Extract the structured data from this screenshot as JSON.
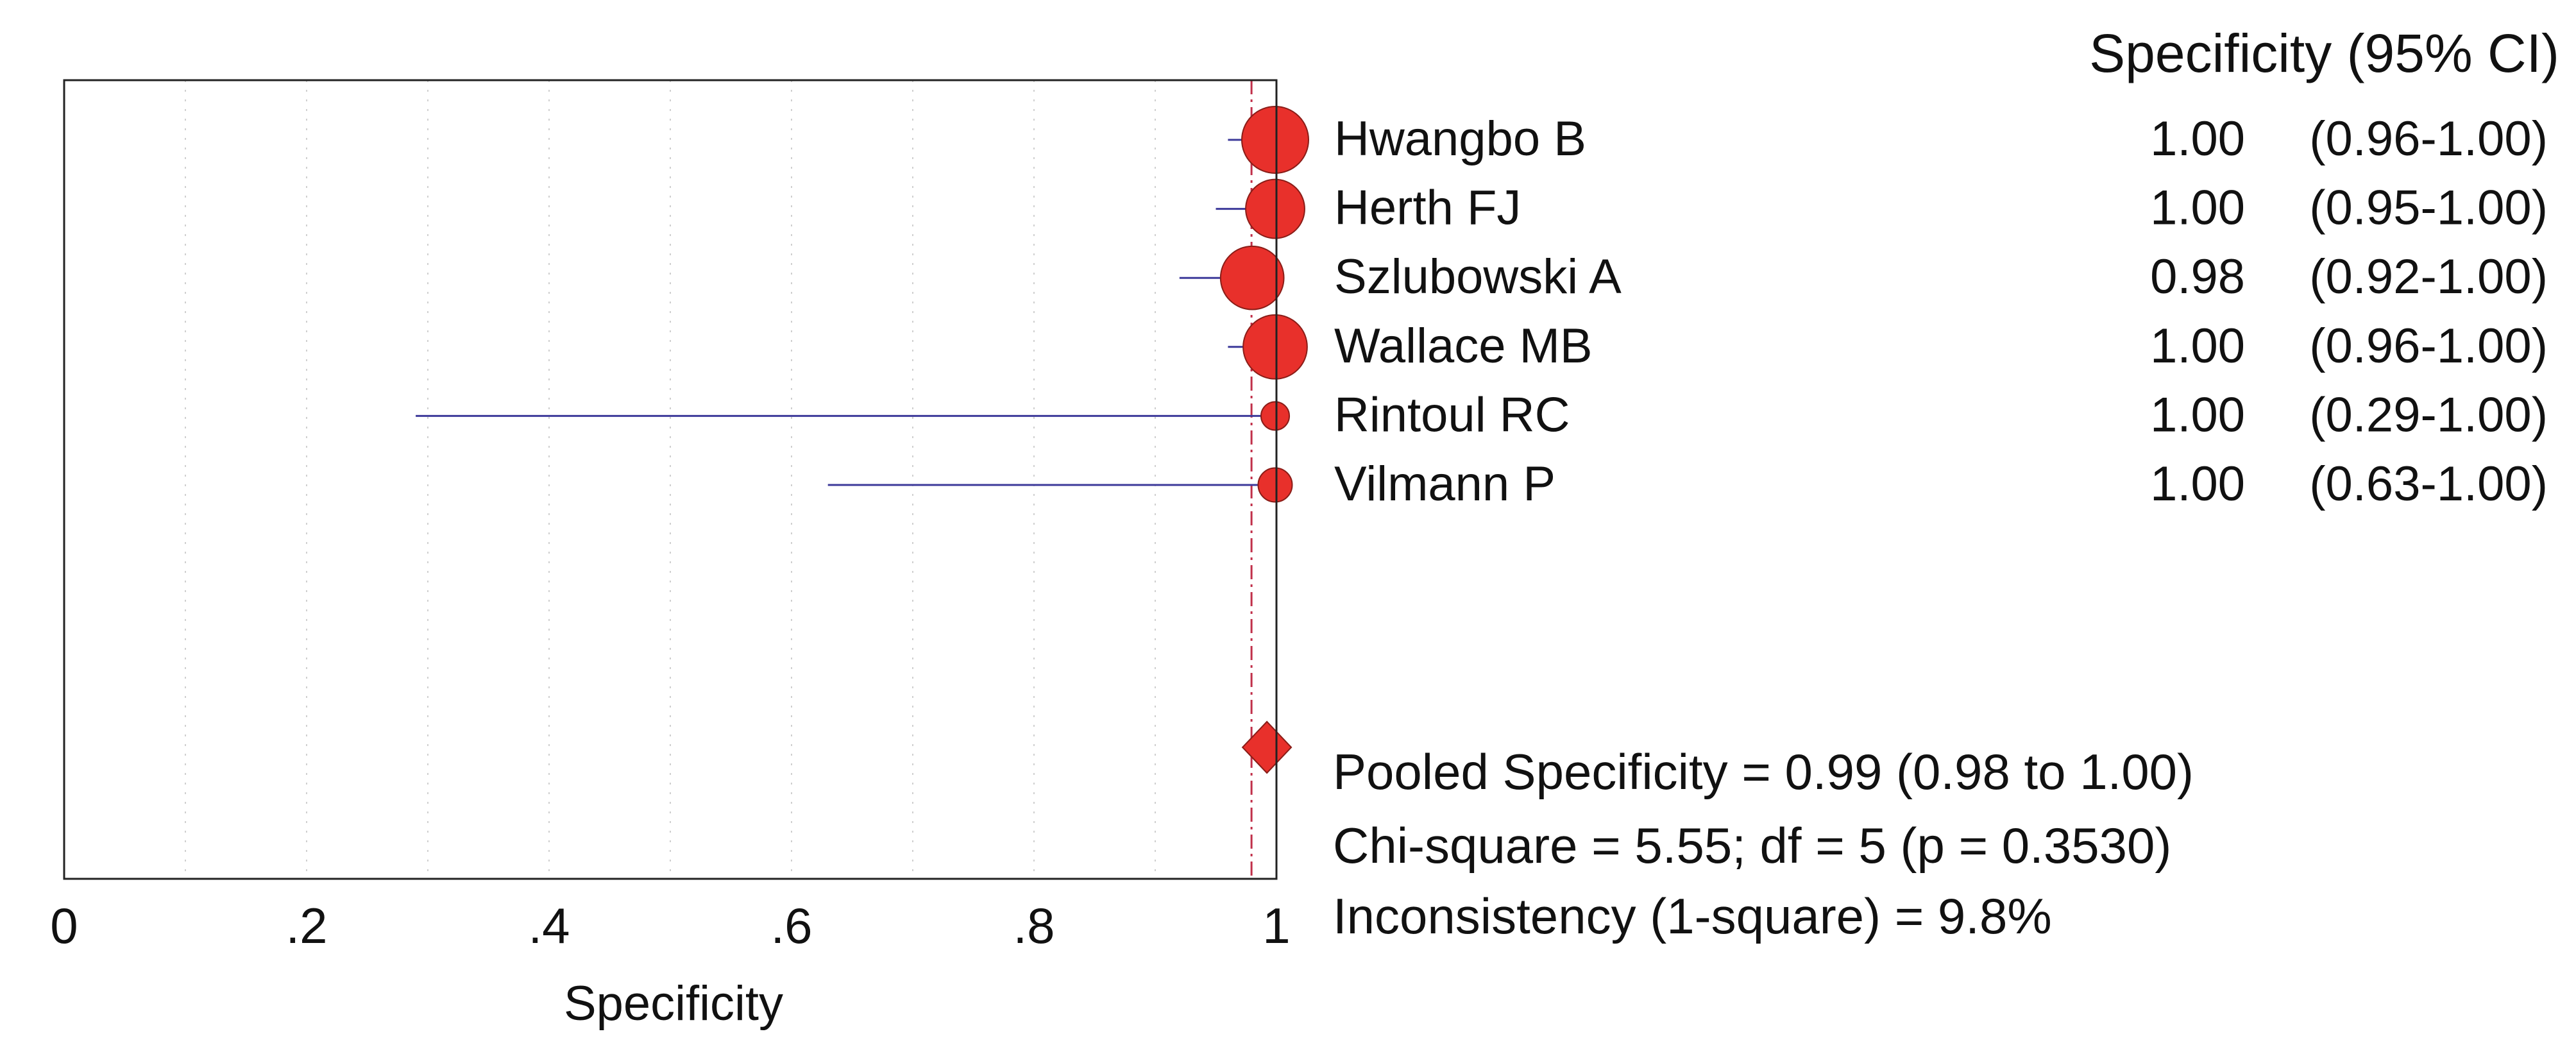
{
  "chart_data": {
    "type": "scatter",
    "variant": "forest-plot",
    "xlabel": "Specificity",
    "xlim": [
      0,
      1
    ],
    "x_ticks": [
      {
        "value": 0,
        "label": "0"
      },
      {
        "value": 0.2,
        "label": ".2"
      },
      {
        "value": 0.4,
        "label": ".4"
      },
      {
        "value": 0.6,
        "label": ".6"
      },
      {
        "value": 0.8,
        "label": ".8"
      },
      {
        "value": 1,
        "label": "1"
      }
    ],
    "grid": "vertical-dotted",
    "column_header": "Specificity (95% CI)",
    "studies": [
      {
        "name": "Hwangbo B",
        "estimate": 1.0,
        "lower": 0.96,
        "upper": 1.0,
        "estimate_text": "1.00",
        "ci_text": "(0.96-1.00)",
        "weight": 1.0
      },
      {
        "name": "Herth FJ",
        "estimate": 1.0,
        "lower": 0.95,
        "upper": 1.0,
        "estimate_text": "1.00",
        "ci_text": "(0.95-1.00)",
        "weight": 0.78
      },
      {
        "name": "Szlubowski A",
        "estimate": 0.98,
        "lower": 0.92,
        "upper": 1.0,
        "estimate_text": "0.98",
        "ci_text": "(0.92-1.00)",
        "weight": 0.9
      },
      {
        "name": "Wallace MB",
        "estimate": 1.0,
        "lower": 0.96,
        "upper": 1.0,
        "estimate_text": "1.00",
        "ci_text": "(0.96-1.00)",
        "weight": 0.92
      },
      {
        "name": "Rintoul RC",
        "estimate": 1.0,
        "lower": 0.29,
        "upper": 1.0,
        "estimate_text": "1.00",
        "ci_text": "(0.29-1.00)",
        "weight": 0.18
      },
      {
        "name": "Vilmann P",
        "estimate": 1.0,
        "lower": 0.63,
        "upper": 1.0,
        "estimate_text": "1.00",
        "ci_text": "(0.63-1.00)",
        "weight": 0.26
      }
    ],
    "pooled": {
      "estimate": 0.99,
      "lower": 0.98,
      "upper": 1.0
    },
    "summary_lines": [
      "Pooled Specificity = 0.99 (0.98 to 1.00)",
      "Chi-square = 5.55; df = 5 (p = 0.3530)",
      "Inconsistency (1-square) = 9.8%"
    ],
    "colors": {
      "marker": "#e8302b",
      "ci_line": "#3d3a9a",
      "pooled_line": "#c0304a",
      "frame": "#222222",
      "grid": "#cfcfcf"
    }
  }
}
